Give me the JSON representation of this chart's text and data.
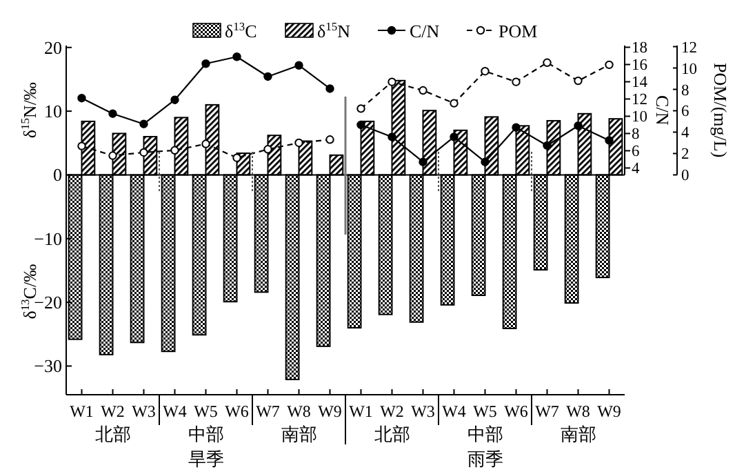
{
  "chart_data": {
    "type": "bar",
    "ylabel": "δ$^{15}$N/‰",
    "y2label": "C/N",
    "y3label": "POM/(mg/L)",
    "categories": [
      "W1",
      "W2",
      "W3",
      "W4",
      "W5",
      "W6",
      "W7",
      "W8",
      "W9",
      "W1",
      "W2",
      "W3",
      "W4",
      "W5",
      "W6",
      "W7",
      "W8",
      "W9"
    ],
    "series": [
      {
        "name": "δ$^{13}$C",
        "color": "#000000",
        "values": [
          -25.8,
          -28.2,
          -26.3,
          -27.7,
          -25.1,
          -19.9,
          -18.4,
          -32.1,
          -26.9,
          -24.0,
          -21.9,
          -23.1,
          -20.4,
          -18.9,
          -24.1,
          -14.9,
          -20.1,
          -16.1
        ]
      },
      {
        "name": "δ$^{15}$N",
        "color": "#000000",
        "values": [
          8.4,
          6.5,
          6.0,
          9.0,
          11.0,
          3.4,
          6.2,
          5.3,
          3.1,
          8.4,
          14.8,
          10.1,
          7.0,
          9.1,
          7.7,
          8.5,
          9.6,
          8.8
        ]
      },
      {
        "name": "C/N",
        "type": "line",
        "axis": "y2",
        "color": "#000000",
        "marker": "circle",
        "line_style": "solid",
        "values": [
          12.1,
          10.3,
          9.1,
          11.9,
          16.1,
          16.9,
          14.6,
          15.9,
          13.2,
          null,
          null,
          null,
          null,
          null,
          null,
          null,
          null,
          null
        ]
      },
      {
        "type": "line",
        "axis": "y2",
        "color": "#000000",
        "marker": "circle",
        "line_style": "solid",
        "values": [
          null,
          null,
          null,
          null,
          null,
          null,
          null,
          null,
          null,
          9.0,
          7.6,
          4.7,
          7.6,
          4.7,
          8.7,
          6.6,
          8.9,
          7.2
        ]
      },
      {
        "name": "POM",
        "type": "line",
        "axis": "y3",
        "color": "#000000",
        "marker": "circle",
        "line_style": "dashed",
        "values": [
          2.7,
          1.8,
          2.1,
          2.3,
          2.9,
          1.6,
          2.4,
          3.0,
          3.3,
          null,
          null,
          null,
          null,
          null,
          null,
          null,
          null,
          null
        ]
      },
      {
        "type": "line",
        "axis": "y3",
        "color": "#000000",
        "marker": "circle",
        "line_style": "dashed",
        "values": [
          null,
          null,
          null,
          null,
          null,
          null,
          null,
          null,
          null,
          6.2,
          8.7,
          7.9,
          6.7,
          9.7,
          8.7,
          10.5,
          8.8,
          10.3
        ]
      }
    ],
    "ylim": [
      -34.5,
      20.3
    ],
    "yticks": [
      -30,
      -20,
      -10,
      0,
      10,
      20
    ],
    "y2lim": [
      3.2,
      18.2
    ],
    "y2ticks": [
      4,
      6,
      8,
      10,
      12,
      14,
      16,
      18
    ],
    "y3lim": [
      0,
      12.1
    ],
    "y3ticks": [
      0,
      2,
      4,
      6,
      8,
      10,
      12
    ],
    "legend": "top",
    "annotations": [
      "δ$^{13}$C/‰",
      "北部",
      "中部",
      "南部",
      "北部",
      "中部",
      "南部",
      "旱季",
      "雨季"
    ]
  }
}
